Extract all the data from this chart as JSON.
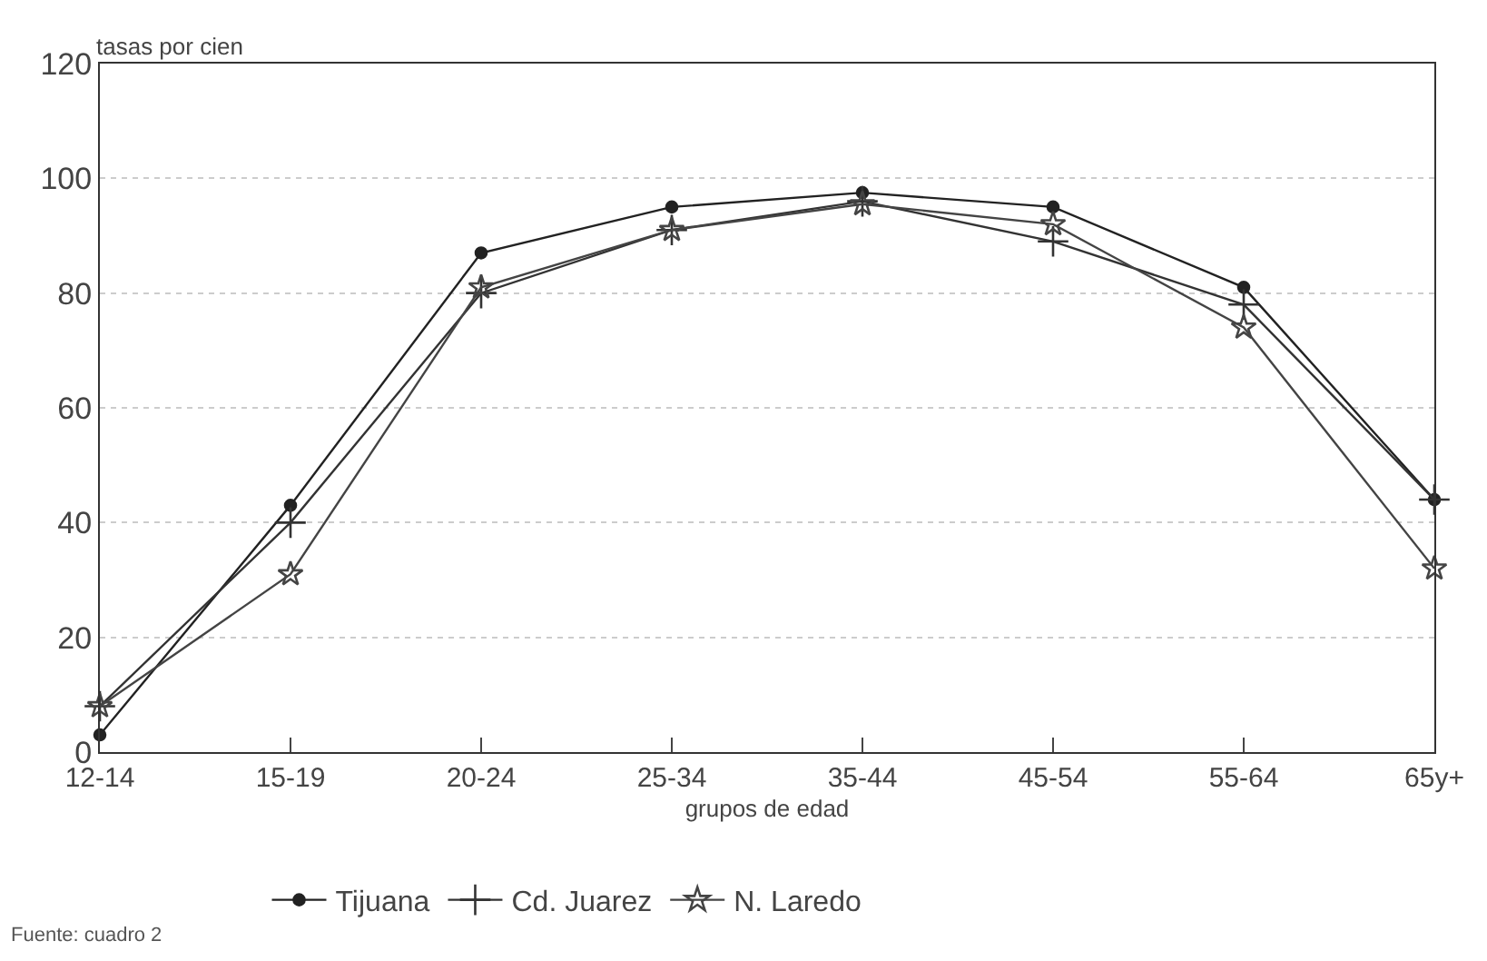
{
  "chart_data": {
    "type": "line",
    "ylabel": "tasas por cien",
    "xlabel": "grupos de edad",
    "categories": [
      "12-14",
      "15-19",
      "20-24",
      "25-34",
      "35-44",
      "45-54",
      "55-64",
      "65y+"
    ],
    "series": [
      {
        "name": "Tijuana",
        "color": "#222222",
        "marker": "circle",
        "values": [
          3,
          43,
          87,
          95,
          97.5,
          95,
          81,
          44
        ]
      },
      {
        "name": "Cd. Juarez",
        "color": "#333333",
        "marker": "cross",
        "values": [
          8,
          40,
          80,
          91,
          96,
          89,
          78,
          44
        ]
      },
      {
        "name": "N. Laredo",
        "color": "#444444",
        "marker": "star",
        "values": [
          8,
          31,
          81,
          91,
          95.5,
          92,
          74,
          32
        ]
      }
    ],
    "ylim": [
      0,
      120
    ],
    "yticks": [
      0,
      20,
      40,
      60,
      80,
      100,
      120
    ],
    "grid": "y",
    "legend": "bottom",
    "line_style": "solid",
    "annotations": [
      "Fuente: cuadro 2"
    ]
  }
}
